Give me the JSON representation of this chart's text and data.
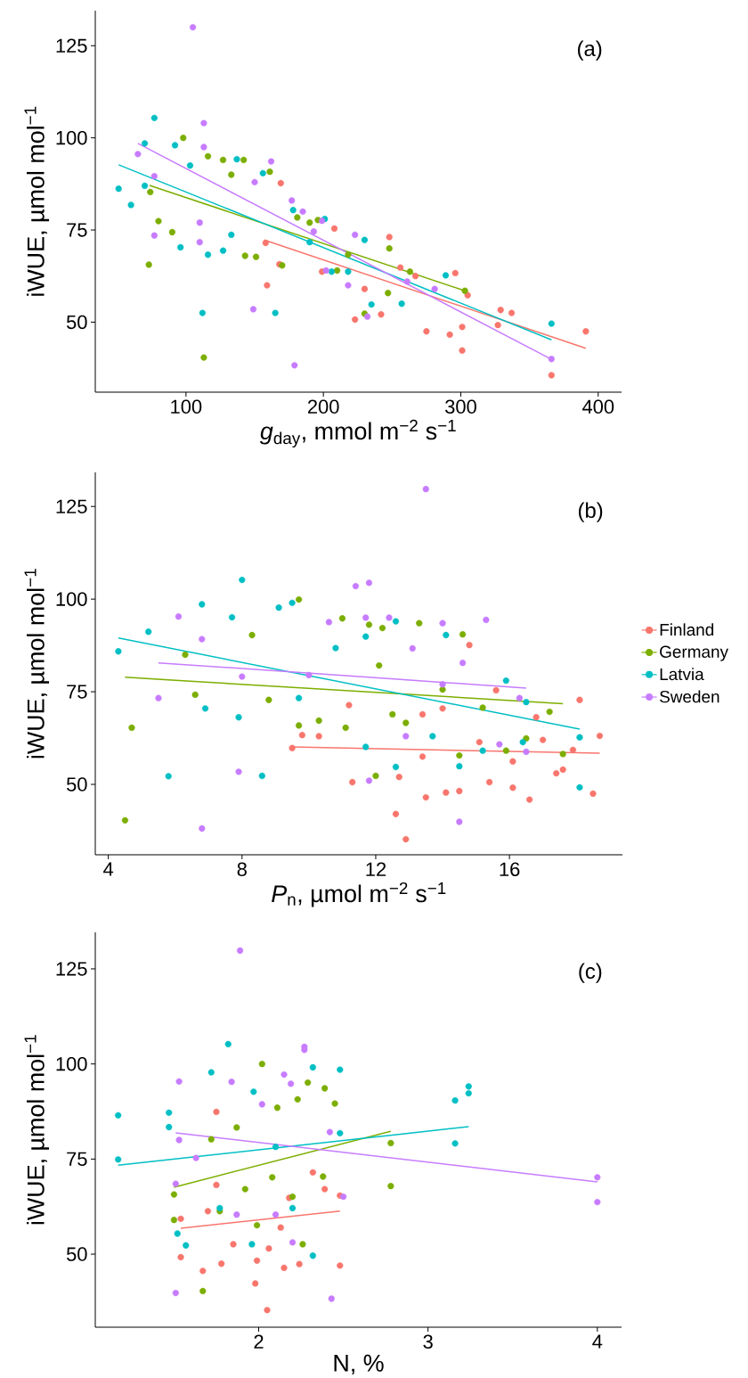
{
  "chart_data": [
    {
      "type": "scatter",
      "xlabel": "*g*$_{day}$, mmol m$^{−2}$ s$^{−1}$",
      "ylabel": "iWUE, µmol mol$^{−1}$",
      "annotations": [
        "(a)"
      ],
      "xlim": [
        34,
        417
      ],
      "ylim": [
        31,
        134.5
      ],
      "xticks": [
        100,
        200,
        300,
        400
      ],
      "yticks": [
        50,
        75,
        100,
        125
      ],
      "grid": false,
      "legend": false,
      "marker": "circle",
      "series": [
        {
          "color": "#f8766d",
          "x": [
            169,
            158,
            159,
            168,
            208,
            223,
            242,
            248,
            256,
            275,
            292,
            296,
            301,
            305,
            329,
            327,
            366,
            391,
            337,
            230,
            267,
            199,
            301
          ],
          "values": [
            87.7,
            71.5,
            60,
            65.7,
            75.4,
            50.7,
            52.1,
            73.1,
            64.8,
            47.5,
            46.6,
            63.3,
            42.3,
            57.3,
            53.3,
            49.2,
            35.6,
            47.5,
            52.5,
            59,
            62.5,
            63.7,
            48.7
          ]
        },
        {
          "color": "#7cae00",
          "x": [
            98,
            73,
            113,
            74,
            80,
            90,
            116,
            127,
            133,
            142,
            143,
            151,
            161,
            170,
            181,
            190,
            196,
            210,
            230,
            248,
            247,
            263,
            303,
            218
          ],
          "values": [
            100,
            65.6,
            40.4,
            85.3,
            77.4,
            74.4,
            95,
            94,
            90,
            94,
            68,
            67.7,
            90.8,
            65.4,
            78.4,
            77,
            77.7,
            64,
            52.3,
            70,
            57.9,
            63.7,
            58.5,
            68.3
          ]
        },
        {
          "color": "#00bfc4",
          "x": [
            51,
            60,
            77,
            70,
            70,
            92,
            96,
            103,
            112,
            116,
            127,
            137,
            133,
            156,
            165,
            178,
            190,
            201,
            218,
            230,
            235,
            257,
            289,
            366,
            206
          ],
          "values": [
            86.2,
            81.8,
            105.4,
            98.5,
            87,
            98,
            70.3,
            92.5,
            52.5,
            68.3,
            69.4,
            94.2,
            73.7,
            90.4,
            52.5,
            80.4,
            71.7,
            78,
            63.7,
            72.3,
            54.8,
            55,
            62.7,
            49.6,
            63.7
          ]
        },
        {
          "color": "#c77cff",
          "x": [
            105,
            113,
            113,
            65,
            77,
            77,
            110,
            110,
            149,
            179,
            177,
            193,
            185,
            202,
            223,
            366,
            162,
            199,
            232,
            281,
            218,
            150,
            261
          ],
          "values": [
            130,
            104,
            97.5,
            95.6,
            89.6,
            73.5,
            71.7,
            77,
            53.5,
            38.3,
            83,
            74.6,
            80,
            64,
            73.7,
            40,
            93.6,
            77.5,
            51.5,
            59,
            60,
            88,
            61
          ]
        },
        {
          "type": "line",
          "marker": "none",
          "color": "#f8766d",
          "x": [
            157,
            391
          ],
          "values": [
            72.3,
            42.9
          ]
        },
        {
          "type": "line",
          "marker": "none",
          "color": "#7cae00",
          "x": [
            73.5,
            303
          ],
          "values": [
            87.1,
            58.5
          ]
        },
        {
          "type": "line",
          "marker": "none",
          "color": "#00bfc4",
          "x": [
            51,
            366
          ],
          "values": [
            92.7,
            45.2
          ]
        },
        {
          "type": "line",
          "marker": "none",
          "color": "#c77cff",
          "x": [
            65,
            366
          ],
          "values": [
            98.5,
            39.9
          ]
        }
      ]
    },
    {
      "type": "scatter",
      "xlabel": "*P*$_{n}$, µmol m$^{−2}$ s$^{−1}$",
      "ylabel": "iWUE, µmol mol$^{−1}$",
      "annotations": [
        "(b)"
      ],
      "xlim": [
        3.61,
        19.38
      ],
      "ylim": [
        31,
        134.2
      ],
      "xticks": [
        4,
        8,
        12,
        16
      ],
      "yticks": [
        50,
        75,
        100,
        125
      ],
      "grid": false,
      "legend": "right",
      "marker": "circle",
      "series": [
        {
          "name": "Finland",
          "color": "#f8766d",
          "x": [
            9.5,
            9.8,
            10.3,
            11.3,
            11.2,
            12.6,
            12.9,
            12.7,
            13.4,
            13.5,
            14.1,
            13.4,
            14.0,
            14.5,
            14.8,
            15.1,
            15.4,
            15.6,
            16.1,
            16.1,
            16.6,
            16.8,
            17.0,
            17.4,
            17.6,
            17.9,
            18.1,
            18.5,
            18.7
          ],
          "values": [
            59.8,
            63.3,
            63,
            50.6,
            71.4,
            42,
            35.2,
            52,
            57.5,
            46.5,
            47.8,
            68.9,
            70.5,
            48.2,
            87.6,
            61.4,
            50.6,
            75.4,
            49.1,
            56.2,
            45.9,
            68.1,
            62,
            53,
            54,
            59.3,
            72.8,
            47.5,
            63.1
          ]
        },
        {
          "name": "Germany",
          "color": "#7cae00",
          "x": [
            4.5,
            4.7,
            6.3,
            6.6,
            8.3,
            8.8,
            9.7,
            9.7,
            10.3,
            11,
            11.1,
            11.8,
            12.0,
            12.2,
            12.5,
            12.9,
            13.3,
            14.0,
            14.5,
            14.6,
            15.2,
            15.9,
            16.5,
            17.2,
            17.6,
            12.1
          ],
          "values": [
            40.3,
            65.3,
            85,
            74.2,
            90.3,
            72.8,
            99.9,
            65.9,
            67.2,
            94.8,
            65.3,
            93.1,
            52.3,
            92.2,
            68.9,
            66.6,
            93.5,
            75.6,
            57.8,
            90.5,
            70.7,
            59.1,
            62.4,
            69.6,
            58.2,
            82.1
          ]
        },
        {
          "name": "Latvia",
          "color": "#00bfc4",
          "x": [
            4.3,
            5.2,
            5.8,
            6.8,
            6.9,
            7.7,
            8.0,
            7.9,
            8.6,
            9.1,
            9.5,
            9.7,
            10.8,
            11.7,
            11.7,
            12.6,
            12.6,
            13.7,
            14.1,
            14.5,
            15.2,
            15.9,
            16.4,
            18.1,
            18.1,
            16.5
          ],
          "values": [
            85.9,
            91.2,
            52.2,
            98.6,
            70.5,
            95.1,
            105.2,
            68.1,
            52.3,
            97.7,
            99,
            73.3,
            86.8,
            89.9,
            60.1,
            94.0,
            54.7,
            63,
            90.3,
            54.9,
            59.1,
            78,
            61.4,
            49.2,
            62.7,
            72.2
          ]
        },
        {
          "name": "Sweden",
          "color": "#c77cff",
          "x": [
            13.5,
            6.1,
            5.5,
            6.8,
            6.8,
            7.9,
            8.0,
            10.6,
            11.4,
            11.8,
            11.8,
            11.7,
            12.4,
            12.9,
            13.1,
            14.0,
            14.5,
            14.6,
            15.3,
            15.7,
            16.5,
            16.3,
            10.0,
            14.0
          ],
          "values": [
            129.7,
            95.3,
            73.3,
            89.2,
            38.1,
            53.4,
            79.1,
            93.8,
            103.5,
            104.4,
            51,
            95,
            95,
            63,
            86.7,
            93.5,
            39.9,
            82.8,
            94.4,
            60.8,
            58.8,
            73.3,
            79.5,
            77
          ]
        },
        {
          "type": "line",
          "marker": "none",
          "color": "#f8766d",
          "x": [
            9.5,
            18.7
          ],
          "values": [
            60.1,
            58.4
          ]
        },
        {
          "type": "line",
          "marker": "none",
          "color": "#7cae00",
          "x": [
            4.5,
            17.6
          ],
          "values": [
            78.9,
            71.8
          ]
        },
        {
          "type": "line",
          "marker": "none",
          "color": "#00bfc4",
          "x": [
            4.3,
            18.1
          ],
          "values": [
            89.5,
            64.9
          ]
        },
        {
          "type": "line",
          "marker": "none",
          "color": "#c77cff",
          "x": [
            5.5,
            16.5
          ],
          "values": [
            82.8,
            76.0
          ]
        }
      ]
    },
    {
      "type": "scatter",
      "xlabel": "N, %",
      "ylabel": "iWUE, µmol mol$^{−1}$",
      "annotations": [
        "(c)"
      ],
      "xlim": [
        1.035,
        4.143
      ],
      "ylim": [
        30.8,
        134.6
      ],
      "xticks": [
        2,
        3,
        4
      ],
      "yticks": [
        50,
        75,
        100,
        125
      ],
      "grid": false,
      "legend": false,
      "marker": "circle",
      "series": [
        {
          "color": "#f8766d",
          "x": [
            1.54,
            1.54,
            1.67,
            1.7,
            1.75,
            1.78,
            1.85,
            1.98,
            2.05,
            2.06,
            1.99,
            2.15,
            2.18,
            2.24,
            2.32,
            2.39,
            2.48,
            2.48,
            2.13,
            1.75
          ],
          "values": [
            59.3,
            49.2,
            45.6,
            61.3,
            68.2,
            47.5,
            52.6,
            42.3,
            35.3,
            51.5,
            48.3,
            46.4,
            64.8,
            47.4,
            71.5,
            67.1,
            47,
            65.4,
            57.0,
            87.4
          ]
        },
        {
          "color": "#7cae00",
          "x": [
            1.67,
            1.5,
            1.5,
            1.72,
            1.77,
            1.87,
            2.02,
            1.92,
            1.99,
            2.11,
            2.2,
            2.23,
            2.29,
            2.26,
            2.39,
            2.45,
            2.78,
            2.78,
            2.08,
            2.38
          ],
          "values": [
            40.3,
            65.7,
            59,
            80.2,
            61.3,
            83.3,
            100,
            67.1,
            57.6,
            88.5,
            65.1,
            90.7,
            95.1,
            52.6,
            93.6,
            89.6,
            79.2,
            67.9,
            70.2,
            70.4
          ]
        },
        {
          "color": "#00bfc4",
          "x": [
            1.17,
            1.17,
            1.47,
            1.47,
            1.52,
            1.57,
            1.72,
            1.82,
            1.97,
            2.1,
            2.2,
            2.32,
            2.32,
            2.48,
            2.48,
            3.16,
            3.16,
            3.24,
            3.24,
            1.96,
            1.77
          ],
          "values": [
            86.5,
            74.9,
            87.2,
            83.4,
            55.4,
            52.3,
            97.8,
            105.2,
            92.7,
            78.2,
            62.1,
            99.1,
            49.6,
            98.5,
            81.8,
            79.1,
            90.4,
            94.1,
            92.3,
            52.6,
            62.1
          ]
        },
        {
          "color": "#c77cff",
          "x": [
            1.89,
            1.53,
            1.53,
            1.51,
            1.51,
            1.63,
            1.84,
            2.02,
            2.15,
            2.27,
            2.27,
            2.43,
            2.42,
            2.5,
            4.0,
            4.0,
            2.1,
            2.2,
            1.87,
            2.19
          ],
          "values": [
            129.8,
            95.4,
            80,
            68.5,
            39.8,
            75.3,
            95.3,
            89.4,
            97.2,
            104.5,
            103.7,
            38.3,
            82.1,
            65.1,
            70.2,
            63.7,
            60.4,
            53.1,
            60.4,
            94.8
          ]
        },
        {
          "type": "line",
          "marker": "none",
          "color": "#f8766d",
          "x": [
            1.54,
            2.48
          ],
          "values": [
            56.8,
            61.3
          ]
        },
        {
          "type": "line",
          "marker": "none",
          "color": "#7cae00",
          "x": [
            1.5,
            2.78
          ],
          "values": [
            67.6,
            82.3
          ]
        },
        {
          "type": "line",
          "marker": "none",
          "color": "#00bfc4",
          "x": [
            1.17,
            3.24
          ],
          "values": [
            73.4,
            83.5
          ]
        },
        {
          "type": "line",
          "marker": "none",
          "color": "#c77cff",
          "x": [
            1.51,
            4.0
          ],
          "values": [
            81.9,
            69.0
          ]
        }
      ]
    }
  ]
}
